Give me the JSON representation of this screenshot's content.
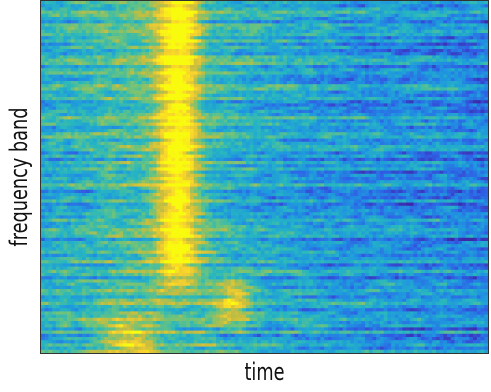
{
  "chart_data": {
    "type": "heatmap",
    "title": "",
    "xlabel": "time",
    "ylabel": "frequency band",
    "x_ticks": [],
    "y_ticks": [],
    "colormap": [
      "#3e26a8",
      "#2f5fe6",
      "#1f96e0",
      "#27b7c0",
      "#6bc37e",
      "#c8bd3e",
      "#f9d22e",
      "#f9fb0e"
    ],
    "grid": false,
    "n_time_bins": 120,
    "n_frequency_bands": 110,
    "value_range": [
      0,
      1
    ],
    "features": [
      {
        "description": "bright band",
        "time_range": [
          0.27,
          0.34
        ],
        "rows_range": [
          0.0,
          0.72
        ],
        "peak_value": 0.95
      },
      {
        "description": "late bright patch",
        "time_range": [
          0.4,
          0.47
        ],
        "rows_range": [
          0.8,
          0.92
        ],
        "peak_value": 0.8
      },
      {
        "description": "early bright patch",
        "time_range": [
          0.14,
          0.24
        ],
        "rows_range": [
          0.9,
          1.0
        ],
        "peak_value": 0.75
      },
      {
        "description": "elevated region",
        "time_range": [
          0.0,
          0.5
        ],
        "rows_range": [
          0.0,
          1.0
        ],
        "peak_value": 0.55
      }
    ]
  }
}
